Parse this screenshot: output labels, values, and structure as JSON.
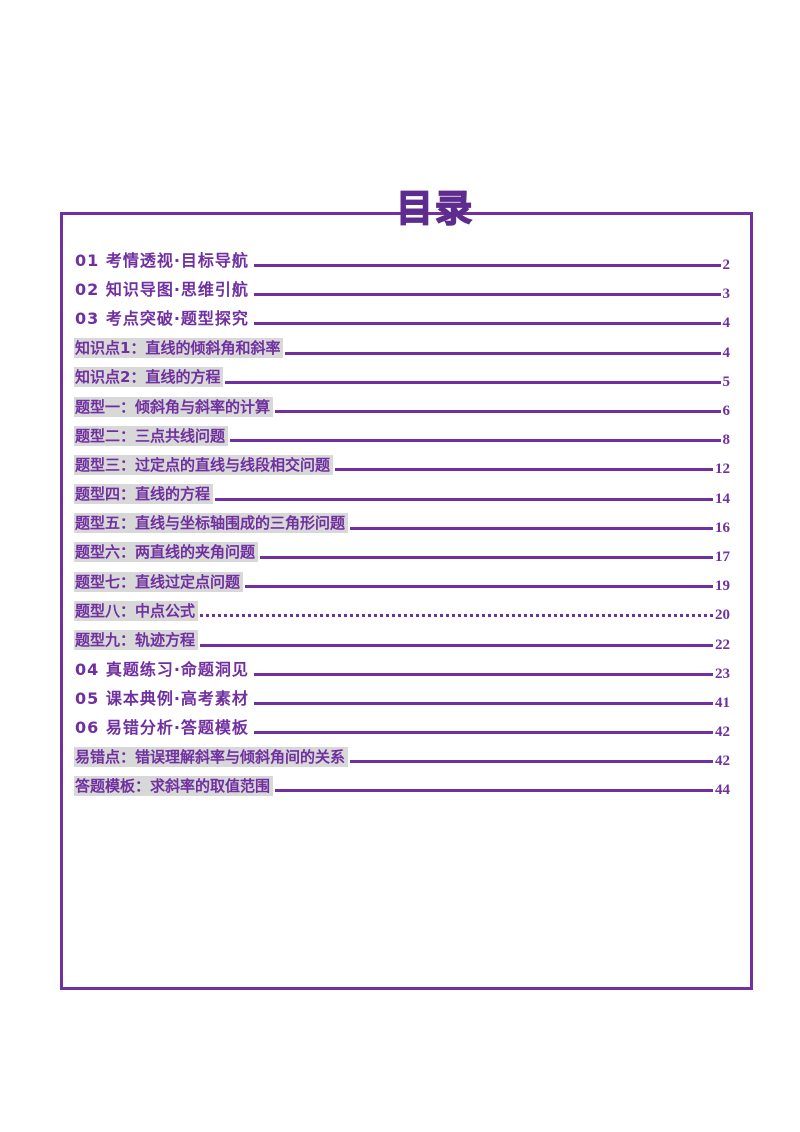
{
  "page": {
    "title": "目录",
    "accent_color": "#7030A0",
    "title_color": "#5E2C8E",
    "highlight_color": "#D8D8D8"
  },
  "toc": {
    "items": [
      {
        "label": "01 考情透视·目标导航",
        "page": "2",
        "kind": "section"
      },
      {
        "label": "02 知识导图·思维引航",
        "page": "3",
        "kind": "section"
      },
      {
        "label": "03 考点突破·题型探究",
        "page": "4",
        "kind": "section"
      },
      {
        "label": "知识点1：直线的倾斜角和斜率",
        "page": "4",
        "kind": "entry"
      },
      {
        "label": "知识点2：直线的方程",
        "page": "5",
        "kind": "entry"
      },
      {
        "label": "题型一：倾斜角与斜率的计算",
        "page": "6",
        "kind": "entry"
      },
      {
        "label": "题型二：三点共线问题",
        "page": "8",
        "kind": "entry"
      },
      {
        "label": "题型三：过定点的直线与线段相交问题",
        "page": "12",
        "kind": "entry"
      },
      {
        "label": "题型四：直线的方程",
        "page": "14",
        "kind": "entry"
      },
      {
        "label": "题型五：直线与坐标轴围成的三角形问题",
        "page": "16",
        "kind": "entry"
      },
      {
        "label": "题型六：两直线的夹角问题",
        "page": "17",
        "kind": "entry"
      },
      {
        "label": "题型七：直线过定点问题",
        "page": "19",
        "kind": "entry"
      },
      {
        "label": "题型八：中点公式",
        "page": "20",
        "kind": "entry",
        "leader": "dotted"
      },
      {
        "label": "题型九：轨迹方程",
        "page": "22",
        "kind": "entry"
      },
      {
        "label": "04 真题练习·命题洞见",
        "page": "23",
        "kind": "section"
      },
      {
        "label": "05 课本典例·高考素材",
        "page": "41",
        "kind": "section"
      },
      {
        "label": "06 易错分析·答题模板",
        "page": "42",
        "kind": "section"
      },
      {
        "label": "易错点：错误理解斜率与倾斜角间的关系",
        "page": "42",
        "kind": "entry"
      },
      {
        "label": "答题模板：求斜率的取值范围",
        "page": "44",
        "kind": "entry"
      }
    ]
  }
}
